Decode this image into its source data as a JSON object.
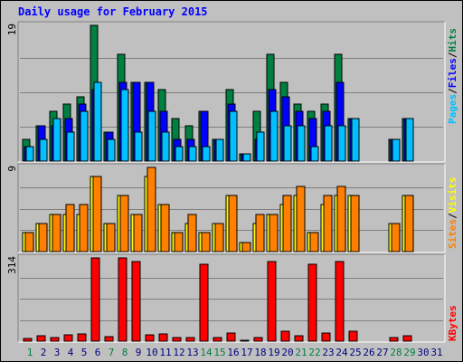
{
  "title": "Daily usage for February 2015",
  "colors": {
    "hits": "#008040",
    "files": "#0000ff",
    "pages": "#00c0ff",
    "visits": "#ffff00",
    "sites": "#ff8000",
    "kbytes": "#ff0000",
    "weekend_day": "#008040",
    "weekday": "#000080",
    "sep": "#000000"
  },
  "chart_data": [
    {
      "type": "bar",
      "title": "Daily usage for February 2015",
      "ymax_label": "19",
      "ylim": [
        0,
        19
      ],
      "grid": true,
      "legend": "right",
      "categories": [
        "1",
        "2",
        "3",
        "4",
        "5",
        "6",
        "7",
        "8",
        "9",
        "10",
        "11",
        "12",
        "13",
        "14",
        "15",
        "16",
        "17",
        "18",
        "19",
        "20",
        "21",
        "22",
        "23",
        "24",
        "25",
        "26",
        "27",
        "28",
        "29",
        "30",
        "31"
      ],
      "series": [
        {
          "name": "Hits",
          "values": [
            3,
            5,
            7,
            8,
            9,
            19,
            4,
            15,
            11,
            11,
            10,
            6,
            5,
            7,
            3,
            10,
            1,
            7,
            15,
            11,
            8,
            7,
            8,
            15,
            6,
            0,
            0,
            3,
            6,
            0,
            0
          ]
        },
        {
          "name": "Files",
          "values": [
            2,
            5,
            5,
            6,
            8,
            10,
            4,
            11,
            11,
            11,
            7,
            3,
            3,
            7,
            3,
            8,
            1,
            3,
            10,
            9,
            7,
            6,
            7,
            11,
            6,
            0,
            0,
            3,
            6,
            0,
            0
          ]
        },
        {
          "name": "Pages",
          "values": [
            2,
            3,
            6,
            4,
            7,
            11,
            3,
            10,
            4,
            7,
            4,
            2,
            2,
            2,
            3,
            7,
            1,
            4,
            7,
            5,
            5,
            2,
            5,
            5,
            6,
            0,
            0,
            3,
            6,
            0,
            0
          ]
        }
      ]
    },
    {
      "type": "bar",
      "ymax_label": "9",
      "ylim": [
        0,
        9
      ],
      "grid": true,
      "legend": "right",
      "categories": [
        "1",
        "2",
        "3",
        "4",
        "5",
        "6",
        "7",
        "8",
        "9",
        "10",
        "11",
        "12",
        "13",
        "14",
        "15",
        "16",
        "17",
        "18",
        "19",
        "20",
        "21",
        "22",
        "23",
        "24",
        "25",
        "26",
        "27",
        "28",
        "29",
        "30",
        "31"
      ],
      "series": [
        {
          "name": "Visits",
          "values": [
            2,
            3,
            4,
            4,
            4,
            8,
            3,
            6,
            4,
            8,
            5,
            2,
            3,
            2,
            3,
            6,
            1,
            3,
            4,
            5,
            6,
            2,
            5,
            6,
            6,
            0,
            0,
            3,
            6,
            0,
            0
          ]
        },
        {
          "name": "Sites",
          "values": [
            2,
            3,
            4,
            5,
            5,
            8,
            3,
            6,
            4,
            9,
            5,
            2,
            4,
            2,
            3,
            6,
            1,
            4,
            4,
            6,
            7,
            2,
            6,
            7,
            6,
            0,
            0,
            3,
            6,
            0,
            0
          ]
        }
      ]
    },
    {
      "type": "bar",
      "ymax_label": "314",
      "ylim": [
        0,
        314
      ],
      "grid": true,
      "legend": "right",
      "categories": [
        "1",
        "2",
        "3",
        "4",
        "5",
        "6",
        "7",
        "8",
        "9",
        "10",
        "11",
        "12",
        "13",
        "14",
        "15",
        "16",
        "17",
        "18",
        "19",
        "20",
        "21",
        "22",
        "23",
        "24",
        "25",
        "26",
        "27",
        "28",
        "29",
        "30",
        "31"
      ],
      "series": [
        {
          "name": "KBytes",
          "values": [
            10,
            22,
            15,
            25,
            27,
            314,
            18,
            314,
            302,
            25,
            27,
            13,
            12,
            290,
            12,
            32,
            5,
            12,
            302,
            37,
            20,
            290,
            30,
            300,
            38,
            0,
            0,
            12,
            22,
            0,
            0
          ]
        }
      ]
    }
  ],
  "labels": {
    "hits": "Hits",
    "files": "Files",
    "pages": "Pages",
    "visits": "Visits",
    "sites": "Sites",
    "kbytes": "KBytes",
    "sep": "/"
  },
  "weekend_days": [
    1,
    7,
    8,
    14,
    15,
    21,
    22,
    28,
    29
  ]
}
